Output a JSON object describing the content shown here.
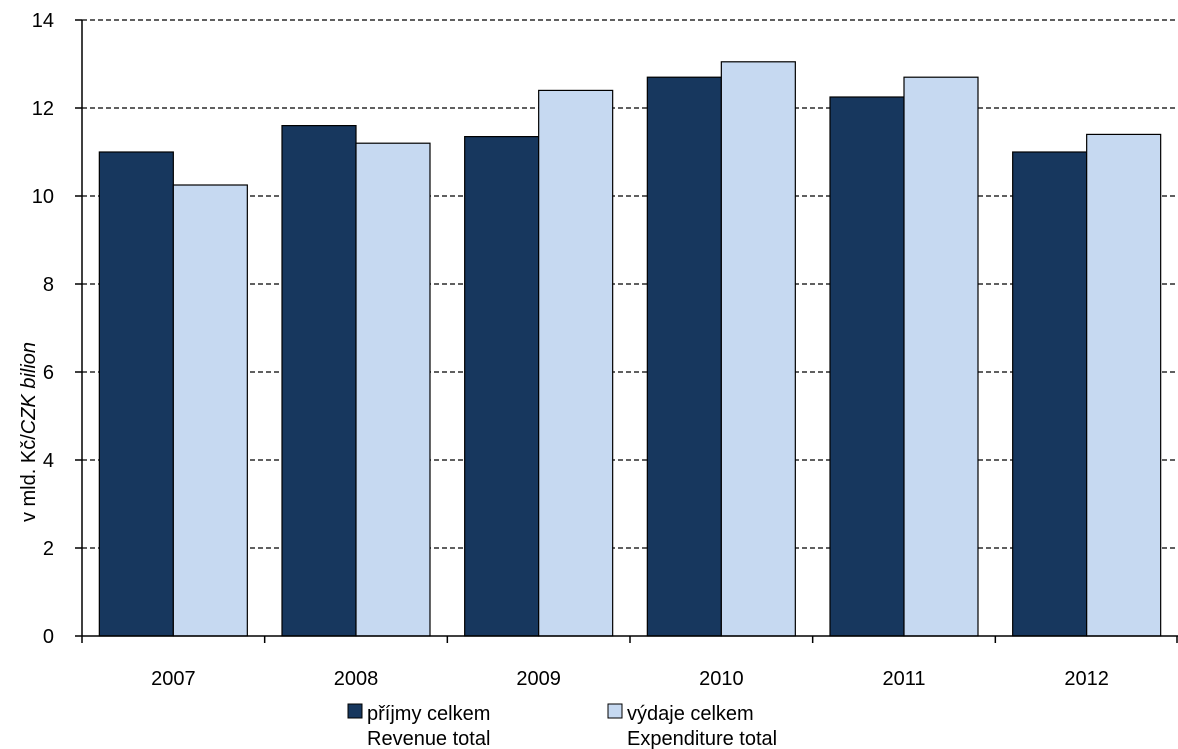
{
  "chart_data": {
    "type": "bar",
    "categories": [
      "2007",
      "2008",
      "2009",
      "2010",
      "2011",
      "2012"
    ],
    "series": [
      {
        "name": "příjmy celkem",
        "name_en": "Revenue total",
        "color": "#17375e",
        "values": [
          11.0,
          11.6,
          11.35,
          12.7,
          12.25,
          11.0
        ]
      },
      {
        "name": "výdaje celkem",
        "name_en": "Expenditure total",
        "color": "#c6d9f1",
        "values": [
          10.25,
          11.2,
          12.4,
          13.05,
          12.7,
          11.4
        ]
      }
    ],
    "ylabel_prefix": "v mld. Kč/",
    "ylabel_italic": "CZK bilion",
    "ylim": [
      0,
      14
    ],
    "yticks": [
      0,
      2,
      4,
      6,
      8,
      10,
      12,
      14
    ],
    "grid": true,
    "legend_position": "bottom"
  }
}
